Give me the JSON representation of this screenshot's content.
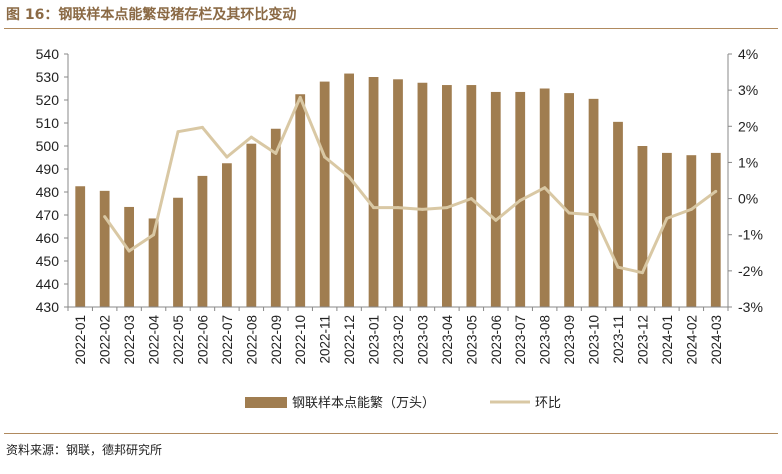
{
  "header": {
    "title": "图 16：钢联样本点能繁母猪存栏及其环比变动"
  },
  "footer": {
    "source": "资料来源：钢联，德邦研究所"
  },
  "colors": {
    "bar": "#a07d50",
    "line": "#d9c8a4",
    "title": "#8b6a45",
    "rule": "#b08a5e",
    "axis": "#888888"
  },
  "chart_data": {
    "type": "bar",
    "categories": [
      "2022-01",
      "2022-02",
      "2022-03",
      "2022-04",
      "2022-05",
      "2022-06",
      "2022-07",
      "2022-08",
      "2022-09",
      "2022-10",
      "2022-11",
      "2022-12",
      "2023-01",
      "2023-02",
      "2023-03",
      "2023-04",
      "2023-05",
      "2023-06",
      "2023-07",
      "2023-08",
      "2023-09",
      "2023-10",
      "2023-11",
      "2023-12",
      "2024-01",
      "2024-02",
      "2024-03"
    ],
    "series": [
      {
        "name": "钢联样本点能繁（万头）",
        "type": "bar",
        "axis": "left",
        "values": [
          482.5,
          480.5,
          473.5,
          468.5,
          477.5,
          487,
          492.5,
          501,
          507.5,
          522.5,
          528,
          531.5,
          530,
          529,
          527.5,
          526.5,
          526.5,
          523.5,
          523.5,
          525,
          523,
          520.5,
          510.5,
          500,
          497,
          496,
          497
        ]
      },
      {
        "name": "环比",
        "type": "line",
        "axis": "right",
        "values": [
          null,
          -0.5,
          -1.45,
          -1.0,
          1.85,
          1.97,
          1.15,
          1.7,
          1.25,
          2.8,
          1.15,
          0.6,
          -0.25,
          -0.25,
          -0.3,
          -0.25,
          0.0,
          -0.6,
          -0.05,
          0.3,
          -0.4,
          -0.45,
          -1.9,
          -2.05,
          -0.55,
          -0.3,
          0.2
        ]
      }
    ],
    "yleft": {
      "lim": [
        430,
        540
      ],
      "ticks": [
        "430",
        "440",
        "450",
        "460",
        "470",
        "480",
        "490",
        "500",
        "510",
        "520",
        "530",
        "540"
      ]
    },
    "yright": {
      "lim": [
        -3,
        4
      ],
      "ticks": [
        "-3%",
        "-2%",
        "-1%",
        "0%",
        "1%",
        "2%",
        "3%",
        "4%"
      ]
    },
    "grid": false,
    "legend_position": "bottom"
  }
}
